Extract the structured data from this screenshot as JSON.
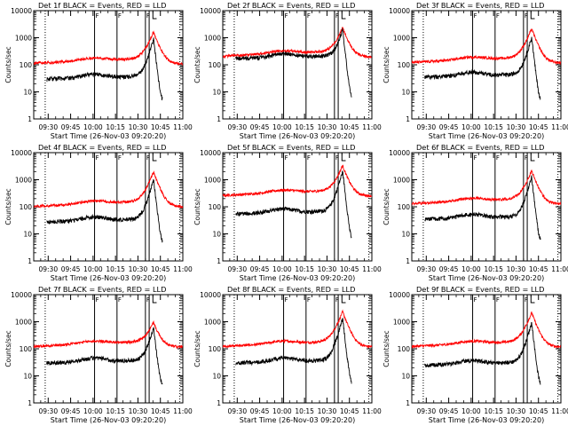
{
  "chart_data": {
    "type": "line",
    "layout": "3x3 grid of panels",
    "y_scale": "log",
    "ylim": [
      1,
      10000
    ],
    "y_ticks": [
      "1",
      "10",
      "100",
      "1000",
      "10000"
    ],
    "ylabel": "Counts/sec",
    "xlabel": "Start Time (26-Nov-03 09:20:20)",
    "x_ticks": [
      "09:30",
      "09:45",
      "10:00",
      "10:15",
      "10:30",
      "10:45",
      "11:00"
    ],
    "x_tick_minutes": [
      0,
      15,
      30,
      45,
      60,
      75,
      90
    ],
    "xlim_minutes": [
      -9.67,
      90
    ],
    "series_colors": {
      "events": "#000000",
      "lld": "#ff0000"
    },
    "vertical_lines": {
      "dotted_minutes": [
        -2,
        88
      ],
      "solid_minutes": [
        31,
        46,
        65,
        67.5
      ],
      "marker_label": "F",
      "bracket_minutes": [
        70,
        72.5
      ]
    },
    "panels": [
      {
        "title": "Det 1f BLACK = Events, RED = LLD",
        "events_base": 30,
        "lld_base": 120,
        "peak_min": 70.5,
        "events_peak": 900,
        "lld_peak": 1500
      },
      {
        "title": "Det 2f BLACK = Events, RED = LLD",
        "events_base": 170,
        "lld_base": 220,
        "peak_min": 70.5,
        "events_peak": 1800,
        "lld_peak": 2100
      },
      {
        "title": "Det 3f BLACK = Events, RED = LLD",
        "events_base": 35,
        "lld_base": 130,
        "peak_min": 70.5,
        "events_peak": 1000,
        "lld_peak": 2000
      },
      {
        "title": "Det 4f BLACK = Events, RED = LLD",
        "events_base": 28,
        "lld_base": 110,
        "peak_min": 70.5,
        "events_peak": 1000,
        "lld_peak": 1800
      },
      {
        "title": "Det 5f BLACK = Events, RED = LLD",
        "events_base": 55,
        "lld_base": 280,
        "peak_min": 70.5,
        "events_peak": 2000,
        "lld_peak": 3000
      },
      {
        "title": "Det 6f BLACK = Events, RED = LLD",
        "events_base": 35,
        "lld_base": 140,
        "peak_min": 70.5,
        "events_peak": 1200,
        "lld_peak": 2000
      },
      {
        "title": "Det 7f BLACK = Events, RED = LLD",
        "events_base": 30,
        "lld_base": 130,
        "peak_min": 70.5,
        "events_peak": 600,
        "lld_peak": 800
      },
      {
        "title": "Det 8f BLACK = Events, RED = LLD",
        "events_base": 30,
        "lld_base": 130,
        "peak_min": 70.5,
        "events_peak": 1300,
        "lld_peak": 2200
      },
      {
        "title": "Det 9f BLACK = Events, RED = LLD",
        "events_base": 25,
        "lld_base": 130,
        "peak_min": 70.5,
        "events_peak": 900,
        "lld_peak": 2000
      }
    ]
  }
}
